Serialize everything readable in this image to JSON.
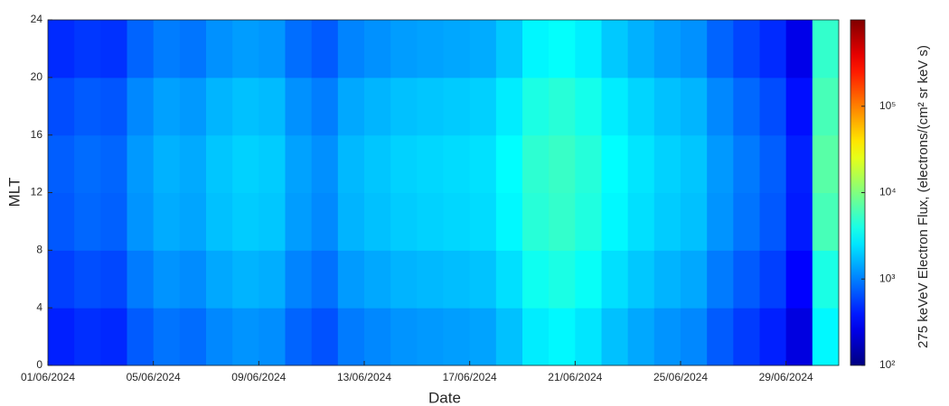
{
  "chart_data": {
    "type": "heatmap",
    "xlabel": "Date",
    "ylabel": "MLT",
    "colorbar_label": "275 keVeV Electron Flux, (electrons/(cm² sr keV s)",
    "colormap": "jet",
    "color_scale": "log",
    "x": [
      "01/06/2024",
      "02/06/2024",
      "03/06/2024",
      "04/06/2024",
      "05/06/2024",
      "06/06/2024",
      "07/06/2024",
      "08/06/2024",
      "09/06/2024",
      "10/06/2024",
      "11/06/2024",
      "12/06/2024",
      "13/06/2024",
      "14/06/2024",
      "15/06/2024",
      "16/06/2024",
      "17/06/2024",
      "18/06/2024",
      "19/06/2024",
      "20/06/2024",
      "21/06/2024",
      "22/06/2024",
      "23/06/2024",
      "24/06/2024",
      "25/06/2024",
      "26/06/2024",
      "27/06/2024",
      "28/06/2024",
      "29/06/2024",
      "30/06/2024"
    ],
    "xticks": [
      "01/06/2024",
      "05/06/2024",
      "09/06/2024",
      "13/06/2024",
      "17/06/2024",
      "21/06/2024",
      "25/06/2024",
      "29/06/2024"
    ],
    "y_bins": [
      0,
      4,
      8,
      12,
      16,
      20,
      24
    ],
    "ylim": [
      0,
      24
    ],
    "yticks": [
      0,
      4,
      8,
      12,
      16,
      20,
      24
    ],
    "clim": [
      100,
      1000000
    ],
    "cticks": [
      {
        "value": 100,
        "label": "10²"
      },
      {
        "value": 1000,
        "label": "10³"
      },
      {
        "value": 10000,
        "label": "10⁴"
      },
      {
        "value": 100000,
        "label": "10⁵"
      }
    ],
    "values": [
      [
        420,
        480,
        450,
        720,
        900,
        840,
        1080,
        1200,
        1140,
        780,
        660,
        960,
        1080,
        1200,
        1260,
        1320,
        1380,
        1800,
        2700,
        3000,
        2520,
        1800,
        1440,
        1200,
        1080,
        720,
        540,
        420,
        240,
        3000
      ],
      [
        560,
        640,
        600,
        960,
        1200,
        1120,
        1440,
        1600,
        1520,
        1040,
        880,
        1280,
        1440,
        1600,
        1680,
        1760,
        1840,
        2400,
        3600,
        4000,
        3360,
        2400,
        1920,
        1600,
        1440,
        960,
        720,
        560,
        320,
        4000
      ],
      [
        700,
        800,
        750,
        1200,
        1500,
        1400,
        1800,
        2000,
        1900,
        1300,
        1100,
        1600,
        1800,
        2000,
        2100,
        2200,
        2300,
        3000,
        4500,
        5000,
        4200,
        3000,
        2400,
        2000,
        1800,
        1200,
        900,
        700,
        400,
        6000
      ],
      [
        740,
        840,
        790,
        1260,
        1580,
        1470,
        1890,
        2100,
        2000,
        1370,
        1160,
        1680,
        1890,
        2100,
        2210,
        2310,
        2420,
        3150,
        4730,
        5250,
        4410,
        3150,
        2520,
        2100,
        1890,
        1260,
        950,
        740,
        420,
        7000
      ],
      [
        630,
        720,
        680,
        1080,
        1350,
        1260,
        1620,
        1800,
        1710,
        1170,
        990,
        1440,
        1620,
        1800,
        1890,
        1980,
        2070,
        2700,
        4050,
        4500,
        3780,
        2700,
        2160,
        1800,
        1620,
        1080,
        810,
        630,
        360,
        6000
      ],
      [
        460,
        520,
        490,
        780,
        980,
        910,
        1170,
        1300,
        1240,
        850,
        720,
        1040,
        1170,
        1300,
        1370,
        1430,
        1500,
        1950,
        2930,
        3250,
        2730,
        1950,
        1560,
        1300,
        1170,
        780,
        590,
        460,
        260,
        5000
      ]
    ]
  }
}
